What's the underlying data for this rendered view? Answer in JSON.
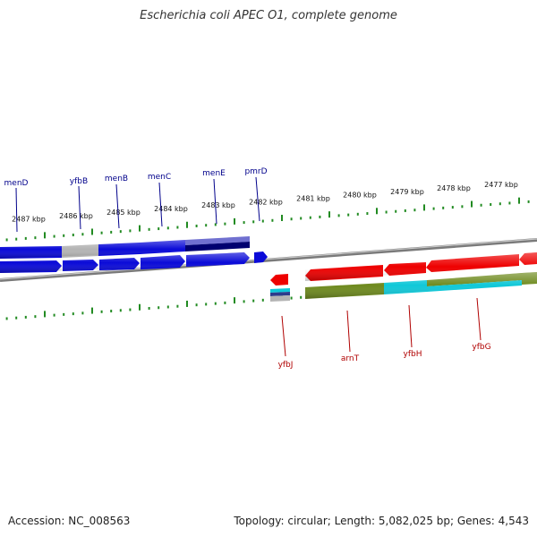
{
  "title": "Escherichia coli APEC O1, complete genome",
  "accession_label": "Accession: NC_008563",
  "summary": "Topology: circular; Length: 5,082,025 bp; Genes: 4,543",
  "colors": {
    "forward_gene": "#0a0ad8",
    "forward_gene_light": "#7070d0",
    "forward_gene_dark": "#000070",
    "reverse_gene": "#ee0000",
    "reverse_cds": "#6e8a1e",
    "reverse_cds_alt": "#10c8d8",
    "gray_feature": "#b4b4b4",
    "ticks": "#228b22",
    "backbone": "#7a7a7a",
    "forward_label": "#00008b",
    "reverse_label": "#b00000"
  },
  "scale_labels": [
    "2487 kbp",
    "2486 kbp",
    "2485 kbp",
    "2484 kbp",
    "2483 kbp",
    "2482 kbp",
    "2481 kbp",
    "2480 kbp",
    "2479 kbp",
    "2478 kbp",
    "2477 kbp"
  ],
  "forward_genes": [
    "menD",
    "yfbB",
    "menB",
    "menC",
    "menE",
    "pmrD"
  ],
  "reverse_genes": [
    "yfbJ",
    "arnT",
    "yfbH",
    "yfbG"
  ]
}
